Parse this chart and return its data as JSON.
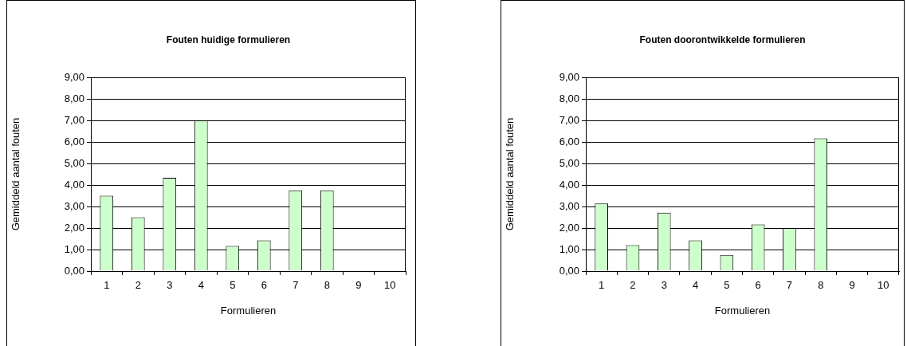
{
  "chart_data": [
    {
      "type": "bar",
      "title": "Fouten huidige formulieren",
      "xlabel": "Formulieren",
      "ylabel": "Gemiddeld aantal fouten",
      "categories": [
        "1",
        "2",
        "3",
        "4",
        "5",
        "6",
        "7",
        "8",
        "9",
        "10"
      ],
      "series": [
        {
          "color": "#ccffcc",
          "values": [
            3.5,
            2.5,
            4.33,
            7.0,
            1.17,
            1.43,
            3.75,
            3.75,
            null,
            null
          ]
        }
      ],
      "ylim": [
        0,
        9
      ],
      "yticks": [
        {
          "value": 0,
          "label": "0,00"
        },
        {
          "value": 1,
          "label": "1,00"
        },
        {
          "value": 2,
          "label": "2,00"
        },
        {
          "value": 3,
          "label": "3,00"
        },
        {
          "value": 4,
          "label": "4,00"
        },
        {
          "value": 5,
          "label": "5,00"
        },
        {
          "value": 6,
          "label": "6,00"
        },
        {
          "value": 7,
          "label": "7,00"
        },
        {
          "value": 8,
          "label": "8,00"
        },
        {
          "value": 9,
          "label": "9,00"
        }
      ],
      "grid": "y",
      "legend": false
    },
    {
      "type": "bar",
      "title": "Fouten doorontwikkelde formulieren",
      "xlabel": "Formulieren",
      "ylabel": "Gemiddeld aantal fouten",
      "categories": [
        "1",
        "2",
        "3",
        "4",
        "5",
        "6",
        "7",
        "8",
        "9",
        "10"
      ],
      "series": [
        {
          "color": "#ccffcc",
          "values": [
            3.14,
            1.2,
            2.71,
            1.43,
            0.75,
            2.17,
            2.0,
            6.17,
            null,
            null
          ]
        }
      ],
      "ylim": [
        0,
        9
      ],
      "yticks": [
        {
          "value": 0,
          "label": "0,00"
        },
        {
          "value": 1,
          "label": "1,00"
        },
        {
          "value": 2,
          "label": "2,00"
        },
        {
          "value": 3,
          "label": "3,00"
        },
        {
          "value": 4,
          "label": "4,00"
        },
        {
          "value": 5,
          "label": "5,00"
        },
        {
          "value": 6,
          "label": "6,00"
        },
        {
          "value": 7,
          "label": "7,00"
        },
        {
          "value": 8,
          "label": "8,00"
        },
        {
          "value": 9,
          "label": "9,00"
        }
      ],
      "grid": "y",
      "legend": false
    }
  ]
}
